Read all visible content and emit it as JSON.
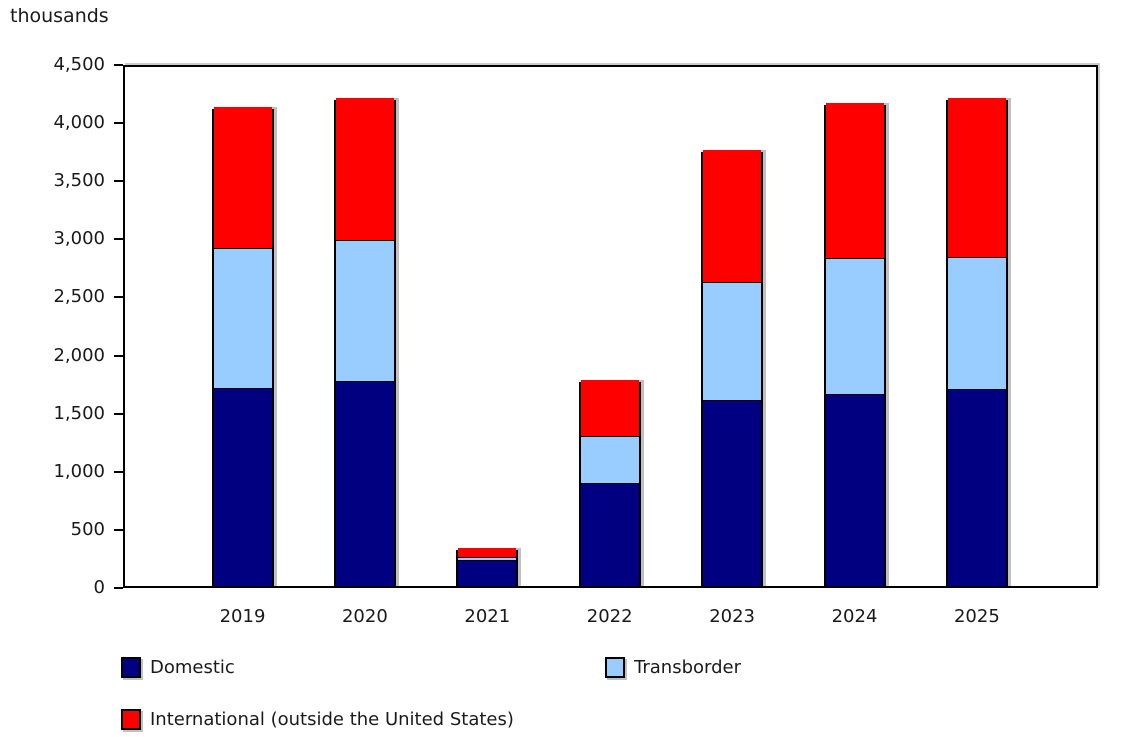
{
  "title": "thousands",
  "chart_data": {
    "type": "bar",
    "stacked": true,
    "title": "thousands",
    "xlabel": "",
    "ylabel": "thousands",
    "ylim": [
      0,
      4500
    ],
    "ytick_step": 500,
    "ytick_labels": [
      "0",
      "500",
      "1,000",
      "1,500",
      "2,000",
      "2,500",
      "3,000",
      "3,500",
      "4,000",
      "4,500"
    ],
    "grid": false,
    "legend_position": "bottom",
    "categories": [
      "2019",
      "2020",
      "2021",
      "2022",
      "2023",
      "2024",
      "2025"
    ],
    "series": [
      {
        "name": "Domestic",
        "color": "#000080",
        "values": [
          1700,
          1765,
          220,
          890,
          1600,
          1655,
          1695
        ]
      },
      {
        "name": "Transborder",
        "color": "#99CCFF",
        "values": [
          1205,
          1210,
          30,
          400,
          1015,
          1165,
          1140
        ]
      },
      {
        "name": "International (outside the United States)",
        "color": "#FF0000",
        "values": [
          1215,
          1225,
          75,
          480,
          1140,
          1340,
          1360
        ]
      }
    ],
    "stack_totals": [
      4120,
      4200,
      325,
      1770,
      3755,
      4160,
      4195
    ]
  },
  "colors": {
    "domestic": "#000080",
    "transborder": "#99CCFF",
    "international": "#FF0000",
    "bar_border": "#000000",
    "axis": "#000000",
    "text": "#1A1A1A",
    "shadow": "#969696",
    "background": "#FFFFFF"
  }
}
